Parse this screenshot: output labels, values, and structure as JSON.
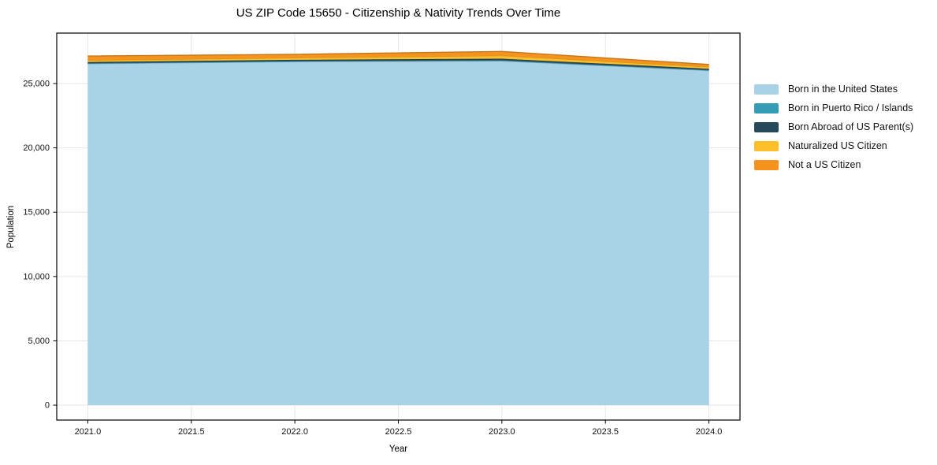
{
  "chart_data": {
    "type": "area",
    "stacked": true,
    "title": "US ZIP Code 15650 - Citizenship & Nativity Trends Over Time",
    "xlabel": "Year",
    "ylabel": "Population",
    "x": [
      2021,
      2022,
      2023,
      2024
    ],
    "series": [
      {
        "name": "Born in the United States",
        "color": "#A8D3E7",
        "values": [
          26540,
          26700,
          26760,
          26010
        ]
      },
      {
        "name": "Born in Puerto Rico / Islands",
        "color": "#349CB5",
        "values": [
          40,
          45,
          50,
          40
        ]
      },
      {
        "name": "Born Abroad of US Parent(s)",
        "color": "#264A5C",
        "values": [
          90,
          100,
          120,
          100
        ]
      },
      {
        "name": "Naturalized US Citizen",
        "color": "#FCBF2A",
        "values": [
          140,
          160,
          240,
          150
        ]
      },
      {
        "name": "Not a US Citizen",
        "color": "#F5931E",
        "values": [
          330,
          270,
          320,
          180
        ]
      }
    ],
    "totals": [
      27140,
      27275,
      27490,
      26480
    ],
    "xlim": [
      2020.85,
      2024.15
    ],
    "ylim": [
      -1160,
      28920
    ],
    "x_ticks": {
      "values": [
        2021.0,
        2021.5,
        2022.0,
        2022.5,
        2023.0,
        2023.5,
        2024.0
      ],
      "labels": [
        "2021.0",
        "2021.5",
        "2022.0",
        "2022.5",
        "2023.0",
        "2023.5",
        "2024.0"
      ]
    },
    "y_ticks": {
      "values": [
        0,
        5000,
        10000,
        15000,
        20000,
        25000
      ],
      "labels": [
        "0",
        "5,000",
        "10,000",
        "15,000",
        "20,000",
        "25,000"
      ]
    },
    "grid": true,
    "grid_color": "#e7e7e7",
    "spine_color": "#000000",
    "legend_position": "right-outside"
  }
}
